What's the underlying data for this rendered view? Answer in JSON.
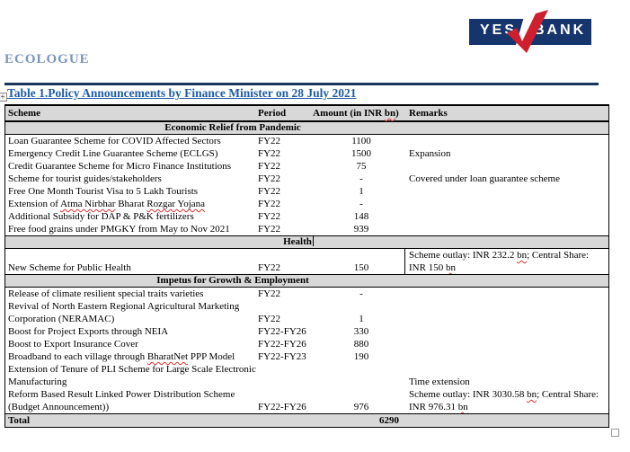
{
  "brand": {
    "ecologue": "ECOLOGUE",
    "logo": {
      "yes": "YES",
      "bank": "BANK"
    }
  },
  "title": "Table 1.Policy Announcements by Finance Minister on 28 July 2021",
  "icons": {
    "anchor_plus": "+",
    "red_tick": "yes-bank-tick"
  },
  "colors": {
    "logo_navy": "#16356d",
    "tick_red": "#cf1f2e",
    "title_blue": "#1f5ca6",
    "ecologue_blue": "#7995ba",
    "rule_navy": "#17365d",
    "section_gray": "#d8d8d8"
  },
  "misspelled": [
    "Atma Nirbhar",
    "Rozgar Yojana",
    "BharatNet",
    "bn"
  ],
  "table": {
    "columns": [
      "Scheme",
      "Period",
      "Amount (in INR bn)",
      "Remarks"
    ],
    "rows": [
      {
        "type": "section",
        "label": "Economic Relief from Pandemic",
        "align": "left"
      },
      {
        "type": "data",
        "scheme": "Loan Guarantee Scheme for COVID Affected Sectors",
        "period": "FY22",
        "amount": "1100",
        "remarks": ""
      },
      {
        "type": "data",
        "scheme": "Emergency Credit Line Guarantee Scheme (ECLGS)",
        "period": "FY22",
        "amount": "1500",
        "remarks": "Expansion"
      },
      {
        "type": "data",
        "scheme": "Credit Guarantee Scheme for Micro Finance Institutions",
        "period": "FY22",
        "amount": "75",
        "remarks": ""
      },
      {
        "type": "data",
        "scheme": "Scheme for tourist guides/stakeholders",
        "period": "FY22",
        "amount": "-",
        "remarks": "Covered under loan guarantee scheme"
      },
      {
        "type": "data",
        "scheme": "Free One Month Tourist Visa to 5 Lakh Tourists",
        "period": "FY22",
        "amount": "1",
        "remarks": ""
      },
      {
        "type": "data",
        "scheme": "Extension of Atma Nirbhar Bharat Rozgar Yojana",
        "period": "FY22",
        "amount": "-",
        "remarks": ""
      },
      {
        "type": "data",
        "scheme": "Additional Subsidy for DAP & P&K fertilizers",
        "period": "FY22",
        "amount": "148",
        "remarks": ""
      },
      {
        "type": "data",
        "scheme": "Free food grains under PMGKY from May to Nov 2021",
        "period": "FY22",
        "amount": "939",
        "remarks": ""
      },
      {
        "type": "section",
        "label": "Health",
        "align": "mid",
        "cursor": true
      },
      {
        "type": "data",
        "scheme": "",
        "period": "",
        "amount": "",
        "remarks": "Scheme outlay: INR 232.2 bn; Central Share:",
        "vline": true
      },
      {
        "type": "data",
        "scheme": "New Scheme for Public Health",
        "period": "FY22",
        "amount": "150",
        "remarks": "INR 150 bn",
        "vline": true
      },
      {
        "type": "section",
        "label": "Impetus for Growth & Employment",
        "align": "left"
      },
      {
        "type": "data",
        "scheme": "Release of climate resilient special traits varieties",
        "period": "FY22",
        "amount": "-",
        "remarks": ""
      },
      {
        "type": "data",
        "scheme": "Revival of North Eastern Regional Agricultural Marketing",
        "period": "",
        "amount": "",
        "remarks": ""
      },
      {
        "type": "data",
        "scheme": "Corporation (NERAMAC)",
        "period": "FY22",
        "amount": "1",
        "remarks": ""
      },
      {
        "type": "data",
        "scheme": "Boost for Project Exports through NEIA",
        "period": "FY22-FY26",
        "amount": "330",
        "remarks": ""
      },
      {
        "type": "data",
        "scheme": "Boost to Export Insurance Cover",
        "period": "FY22-FY26",
        "amount": "880",
        "remarks": ""
      },
      {
        "type": "data",
        "scheme": "Broadband to each village through BharatNet PPP Model",
        "period": "FY22-FY23",
        "amount": "190",
        "remarks": ""
      },
      {
        "type": "data",
        "scheme": "Extension of Tenure of PLI Scheme for Large Scale Electronic",
        "period": "",
        "amount": "",
        "remarks": ""
      },
      {
        "type": "data",
        "scheme": "Manufacturing",
        "period": "",
        "amount": "",
        "remarks": "Time extension"
      },
      {
        "type": "data",
        "scheme": "Reform Based Result Linked Power Distribution Scheme",
        "period": "",
        "amount": "",
        "remarks": "Scheme outlay: INR 3030.58 bn; Central Share:"
      },
      {
        "type": "data",
        "scheme": "(Budget Announcement))",
        "period": "FY22-FY26",
        "amount": "976",
        "remarks": "INR 976.31 bn"
      },
      {
        "type": "total",
        "scheme": "Total",
        "amount": "6290"
      }
    ]
  }
}
